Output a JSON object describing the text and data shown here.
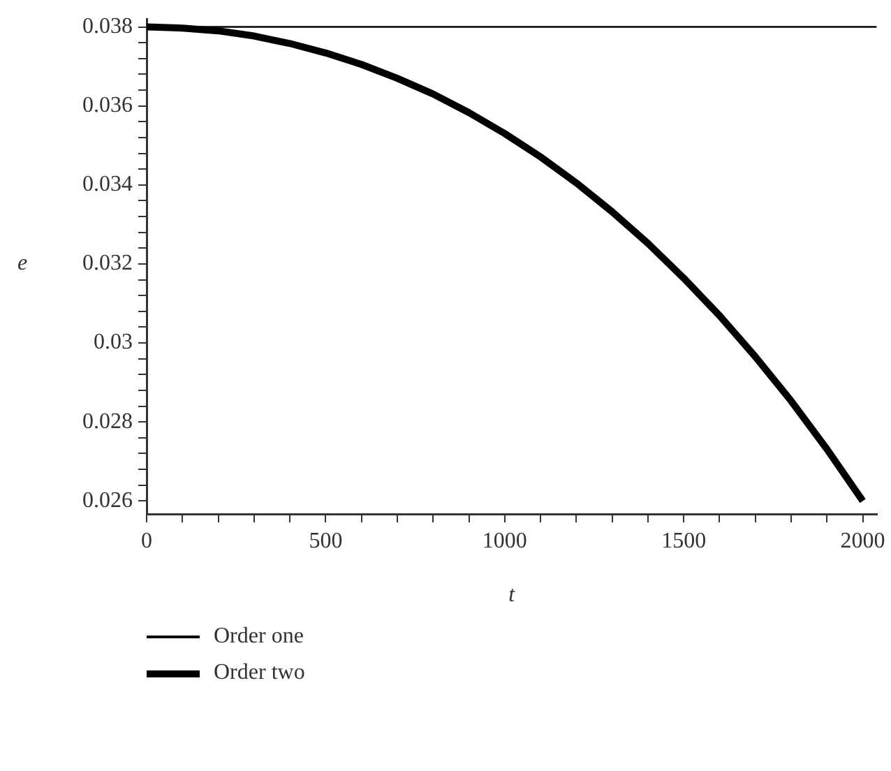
{
  "chart_data": {
    "type": "line",
    "xlabel": "t",
    "ylabel": "e",
    "legend": "bottom left",
    "marker": "none",
    "line_style": "solid",
    "grid": false,
    "xlim": [
      0,
      2039
    ],
    "ylim": [
      0.02567,
      0.0382
    ],
    "xticks": [
      0,
      {
        "value": 100,
        "label": null
      },
      {
        "value": 200,
        "label": null
      },
      {
        "value": 300,
        "label": null
      },
      {
        "value": 400,
        "label": null
      },
      500,
      {
        "value": 600,
        "label": null
      },
      {
        "value": 700,
        "label": null
      },
      {
        "value": 800,
        "label": null
      },
      {
        "value": 900,
        "label": null
      },
      1000,
      {
        "value": 1100,
        "label": null
      },
      {
        "value": 1200,
        "label": null
      },
      {
        "value": 1300,
        "label": null
      },
      {
        "value": 1400,
        "label": null
      },
      1500,
      {
        "value": 1600,
        "label": null
      },
      {
        "value": 1700,
        "label": null
      },
      {
        "value": 1800,
        "label": null
      },
      {
        "value": 1900,
        "label": null
      },
      2000
    ],
    "yticks": [
      0.026,
      {
        "value": 0.0264,
        "label": null
      },
      {
        "value": 0.0268,
        "label": null
      },
      {
        "value": 0.0272,
        "label": null
      },
      {
        "value": 0.0276,
        "label": null
      },
      0.028,
      {
        "value": 0.0284,
        "label": null
      },
      {
        "value": 0.0288,
        "label": null
      },
      {
        "value": 0.0292,
        "label": null
      },
      {
        "value": 0.0296,
        "label": null
      },
      0.03,
      {
        "value": 0.0304,
        "label": null
      },
      {
        "value": 0.0308,
        "label": null
      },
      {
        "value": 0.0312,
        "label": null
      },
      {
        "value": 0.0316,
        "label": null
      },
      0.032,
      {
        "value": 0.0324,
        "label": null
      },
      {
        "value": 0.0328,
        "label": null
      },
      {
        "value": 0.0332,
        "label": null
      },
      {
        "value": 0.0336,
        "label": null
      },
      0.034,
      {
        "value": 0.0344,
        "label": null
      },
      {
        "value": 0.0348,
        "label": null
      },
      {
        "value": 0.0352,
        "label": null
      },
      {
        "value": 0.0356,
        "label": null
      },
      0.036,
      {
        "value": 0.0364,
        "label": null
      },
      {
        "value": 0.0368,
        "label": null
      },
      {
        "value": 0.0372,
        "label": null
      },
      {
        "value": 0.0376,
        "label": null
      },
      0.038
    ],
    "series": [
      {
        "name": "Order one",
        "color": "#000000",
        "x": [
          0,
          2039
        ],
        "values": [
          0.038,
          0.038
        ]
      },
      {
        "name": "Order two",
        "color": "#000000",
        "x": [
          0,
          100,
          200,
          300,
          400,
          500,
          600,
          700,
          800,
          900,
          1000,
          1100,
          1200,
          1300,
          1400,
          1500,
          1600,
          1700,
          1800,
          1900,
          2000
        ],
        "values": [
          0.038,
          0.03797,
          0.0379,
          0.03777,
          0.03758,
          0.03734,
          0.03705,
          0.0367,
          0.0363,
          0.03583,
          0.0353,
          0.03471,
          0.03405,
          0.03332,
          0.03252,
          0.03164,
          0.03069,
          0.02965,
          0.02853,
          0.02731,
          0.026
        ]
      }
    ]
  }
}
